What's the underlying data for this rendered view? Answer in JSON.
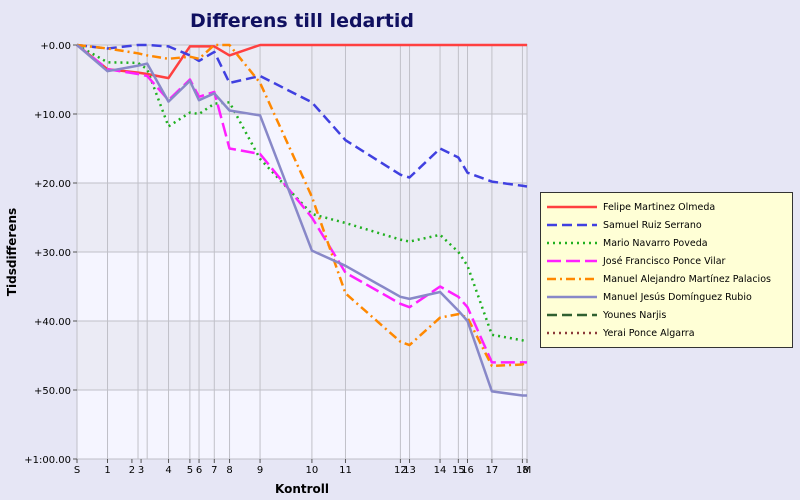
{
  "chart_data": {
    "type": "line",
    "title": "Differens till ledartid",
    "xlabel": "Kontroll",
    "ylabel": "Tidsdifferens",
    "ylim": [
      0,
      60
    ],
    "y_inverted": true,
    "y_ticks": [
      0,
      10,
      20,
      30,
      40,
      50,
      60
    ],
    "y_tick_labels": [
      "+0.00",
      "+10.00",
      "+20.00",
      "+30.00",
      "+40.00",
      "+50.00",
      "+1:00.00"
    ],
    "x_positions": [
      0,
      1.0,
      2.0,
      2.3,
      3.0,
      3.7,
      4.0,
      4.5,
      5.0,
      6.0,
      7.7,
      8.8,
      10.6,
      10.9,
      11.9,
      12.5,
      12.8,
      13.6,
      14.6,
      14.75
    ],
    "x_tick_labels": [
      "S",
      "1",
      "2",
      "3",
      "4",
      "5",
      "6",
      "7",
      "8",
      "9",
      "10",
      "11",
      "12",
      "13",
      "14",
      "15",
      "16",
      "17",
      "18",
      "M"
    ],
    "x_tick_positions": [
      0,
      1.0,
      1.8,
      2.1,
      3.0,
      3.7,
      4.0,
      4.5,
      5.0,
      6.0,
      7.7,
      8.8,
      10.6,
      10.9,
      11.9,
      12.5,
      12.8,
      13.6,
      14.6,
      14.75
    ],
    "grid": true,
    "legend_position": "right",
    "series": [
      {
        "name": "Felipe Martinez Olmeda",
        "color": "#ff4040",
        "dash": "solid",
        "values": [
          0,
          3.5,
          4.0,
          4.2,
          4.8,
          0.2,
          0.2,
          0.2,
          1.5,
          0,
          0,
          0,
          0,
          0,
          0,
          0,
          0,
          0,
          0,
          0
        ]
      },
      {
        "name": "Samuel Ruiz Serrano",
        "color": "#4040e0",
        "dash": "dash",
        "values": [
          0,
          0.5,
          0,
          0,
          0.2,
          1.5,
          2.3,
          1.0,
          5.5,
          4.5,
          8.3,
          13.8,
          18.8,
          19.2,
          15.0,
          16.3,
          18.5,
          19.8,
          20.4,
          20.5
        ]
      },
      {
        "name": "Mario Navarro Poveda",
        "color": "#20b020",
        "dash": "dot",
        "values": [
          0,
          2.5,
          2.6,
          3.5,
          11.8,
          9.8,
          10.0,
          8.5,
          8.3,
          16.5,
          24.5,
          25.8,
          28.2,
          28.5,
          27.5,
          30.0,
          32.0,
          42.0,
          42.8,
          43.0
        ]
      },
      {
        "name": "José Francisco Ponce Vilar",
        "color": "#ff20ff",
        "dash": "longdash",
        "values": [
          0,
          3.5,
          4.2,
          4.5,
          8.0,
          5.0,
          7.5,
          6.8,
          15.0,
          15.8,
          25.0,
          33.0,
          37.5,
          38.0,
          35.0,
          36.5,
          38.0,
          46.0,
          46.0,
          46.0
        ]
      },
      {
        "name": "Manuel Alejandro Martínez Palacios",
        "color": "#ff8800",
        "dash": "dashdot",
        "values": [
          0,
          0.5,
          1.2,
          1.5,
          2.0,
          1.7,
          2.0,
          0,
          0,
          5.5,
          22.0,
          36.0,
          43.0,
          43.5,
          39.5,
          39.0,
          39.5,
          46.5,
          46.3,
          46.0
        ]
      },
      {
        "name": "Manuel Jesús Domínguez Rubio",
        "color": "#8888c8",
        "dash": "solid",
        "values": [
          0,
          3.8,
          3.0,
          2.7,
          8.2,
          5.2,
          8.0,
          7.0,
          9.5,
          10.2,
          29.8,
          32.0,
          36.5,
          36.8,
          35.8,
          38.5,
          40.0,
          50.2,
          50.8,
          50.8
        ]
      },
      {
        "name": "Younes Narjis",
        "color": "#306030",
        "dash": "dash",
        "values": []
      },
      {
        "name": "Yerai Ponce Algarra",
        "color": "#8b3a3a",
        "dash": "dot",
        "values": []
      }
    ]
  }
}
